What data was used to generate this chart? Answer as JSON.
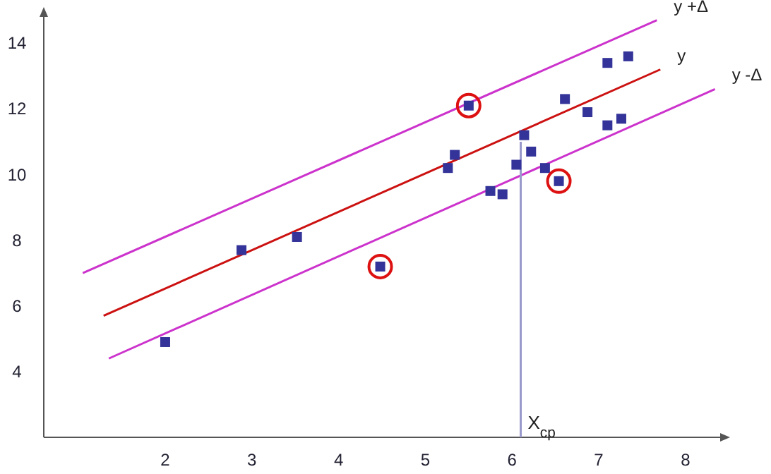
{
  "chart_data": {
    "type": "scatter",
    "xlim": [
      0.6,
      8.4
    ],
    "ylim": [
      2,
      14.8
    ],
    "xticks": [
      2,
      3,
      4,
      5,
      6,
      7,
      8
    ],
    "yticks": [
      4,
      6,
      8,
      10,
      12,
      14
    ],
    "grid": false,
    "series": [
      {
        "color": "#333399",
        "marker": "square",
        "x": [
          2.0,
          2.88,
          3.52,
          4.48,
          5.26,
          5.34,
          5.5,
          5.75,
          5.89,
          6.05,
          6.14,
          6.22,
          6.38,
          6.54,
          6.61,
          6.87,
          7.1,
          7.1,
          7.26,
          7.34
        ],
        "values": [
          4.9,
          7.7,
          8.1,
          7.2,
          10.2,
          10.6,
          12.1,
          9.5,
          9.4,
          10.3,
          11.2,
          10.7,
          10.2,
          9.8,
          12.3,
          11.9,
          13.4,
          11.5,
          11.7,
          13.6
        ]
      },
      {
        "color": "#dd1111",
        "marker": "circle",
        "x": [
          4.48,
          5.5,
          6.54
        ],
        "values": [
          7.2,
          12.1,
          9.8
        ]
      },
      {
        "type": "line",
        "name": "y +Δ",
        "color": "#cc33cc",
        "x": [
          1.05,
          7.67
        ],
        "values": [
          7.0,
          14.7
        ]
      },
      {
        "type": "line",
        "name": "y",
        "color": "#cc1111",
        "x": [
          1.29,
          7.71
        ],
        "values": [
          5.7,
          13.2
        ]
      },
      {
        "type": "line",
        "name": "y -Δ",
        "color": "#cc33cc",
        "x": [
          1.35,
          8.34
        ],
        "values": [
          4.4,
          12.6
        ]
      },
      {
        "type": "line",
        "color": "#9999cc",
        "x": [
          6.1,
          6.1
        ],
        "values": [
          2,
          11.0
        ]
      }
    ],
    "annotations": [
      {
        "text": "X$_{cp}$",
        "x": 6.1,
        "y": 2
      }
    ]
  }
}
